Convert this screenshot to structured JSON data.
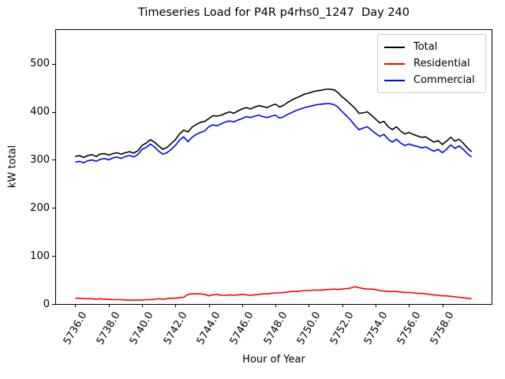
{
  "chart_data": {
    "type": "line",
    "title": "Timeseries Load for P4R p4rhs0_1247  Day 240",
    "xlabel": "Hour of Year",
    "ylabel": "kW total",
    "grid": false,
    "legend_position": "upper right",
    "xlim": [
      5734.8,
      5760.95
    ],
    "ylim": [
      0,
      572
    ],
    "x_tick_values": [
      5736,
      5738,
      5740,
      5742,
      5744,
      5746,
      5748,
      5750,
      5752,
      5754,
      5756,
      5758
    ],
    "x_tick_labels": [
      "5736.0",
      "5738.0",
      "5740.0",
      "5742.0",
      "5744.0",
      "5746.0",
      "5748.0",
      "5750.0",
      "5752.0",
      "5754.0",
      "5756.0",
      "5758.0"
    ],
    "x_tick_rotation_deg": 60,
    "y_tick_values": [
      0,
      100,
      200,
      300,
      400,
      500
    ],
    "y_tick_labels": [
      "0",
      "100",
      "200",
      "300",
      "400",
      "500"
    ],
    "x_start": 5736.0,
    "x_step": 0.25,
    "n_points": 96,
    "series": [
      {
        "name": "Total",
        "color": "#000000",
        "values": [
          307,
          309,
          305,
          309,
          311,
          307,
          312,
          313,
          310,
          313,
          315,
          312,
          315,
          317,
          314,
          319,
          330,
          335,
          342,
          337,
          329,
          322,
          326,
          334,
          342,
          354,
          362,
          358,
          368,
          374,
          378,
          380,
          386,
          392,
          391,
          393,
          397,
          400,
          397,
          402,
          406,
          409,
          406,
          410,
          413,
          411,
          409,
          413,
          416,
          410,
          414,
          420,
          425,
          429,
          433,
          437,
          439,
          442,
          444,
          445,
          447,
          447,
          446,
          440,
          431,
          424,
          416,
          408,
          397,
          398,
          400,
          393,
          385,
          377,
          380,
          369,
          363,
          369,
          360,
          354,
          357,
          353,
          350,
          347,
          348,
          342,
          337,
          340,
          332,
          339,
          347,
          339,
          343,
          335,
          325,
          317
        ]
      },
      {
        "name": "Residential",
        "color": "#ff0000",
        "values": [
          12,
          12,
          11,
          11,
          11,
          10,
          11,
          10,
          10,
          9,
          9,
          9,
          8,
          8,
          8,
          8,
          8,
          9,
          9,
          10,
          11,
          10,
          11,
          12,
          12,
          13,
          14,
          20,
          21,
          21,
          21,
          20,
          17,
          19,
          20,
          18,
          18,
          19,
          18,
          19,
          20,
          19,
          18,
          19,
          20,
          21,
          21,
          22,
          23,
          23,
          24,
          25,
          26,
          26,
          27,
          28,
          28,
          29,
          29,
          29,
          30,
          30,
          31,
          30,
          31,
          32,
          33,
          36,
          34,
          32,
          31,
          31,
          30,
          28,
          27,
          26,
          26,
          26,
          25,
          24,
          24,
          23,
          22,
          22,
          21,
          20,
          19,
          18,
          17,
          17,
          16,
          15,
          14,
          13,
          12,
          11
        ]
      },
      {
        "name": "Commercial",
        "color": "#0000ff",
        "values": [
          295,
          297,
          294,
          298,
          300,
          297,
          301,
          303,
          300,
          304,
          306,
          303,
          307,
          309,
          306,
          311,
          322,
          326,
          333,
          327,
          318,
          312,
          315,
          322,
          330,
          341,
          348,
          338,
          347,
          353,
          357,
          360,
          369,
          373,
          371,
          375,
          379,
          381,
          379,
          383,
          386,
          390,
          388,
          391,
          393,
          390,
          388,
          391,
          393,
          387,
          390,
          395,
          399,
          403,
          406,
          409,
          411,
          413,
          415,
          416,
          417,
          417,
          415,
          410,
          400,
          392,
          383,
          372,
          363,
          366,
          369,
          362,
          355,
          349,
          353,
          343,
          337,
          343,
          335,
          330,
          333,
          330,
          328,
          325,
          327,
          322,
          318,
          322,
          315,
          322,
          331,
          324,
          329,
          322,
          313,
          306
        ]
      }
    ]
  }
}
